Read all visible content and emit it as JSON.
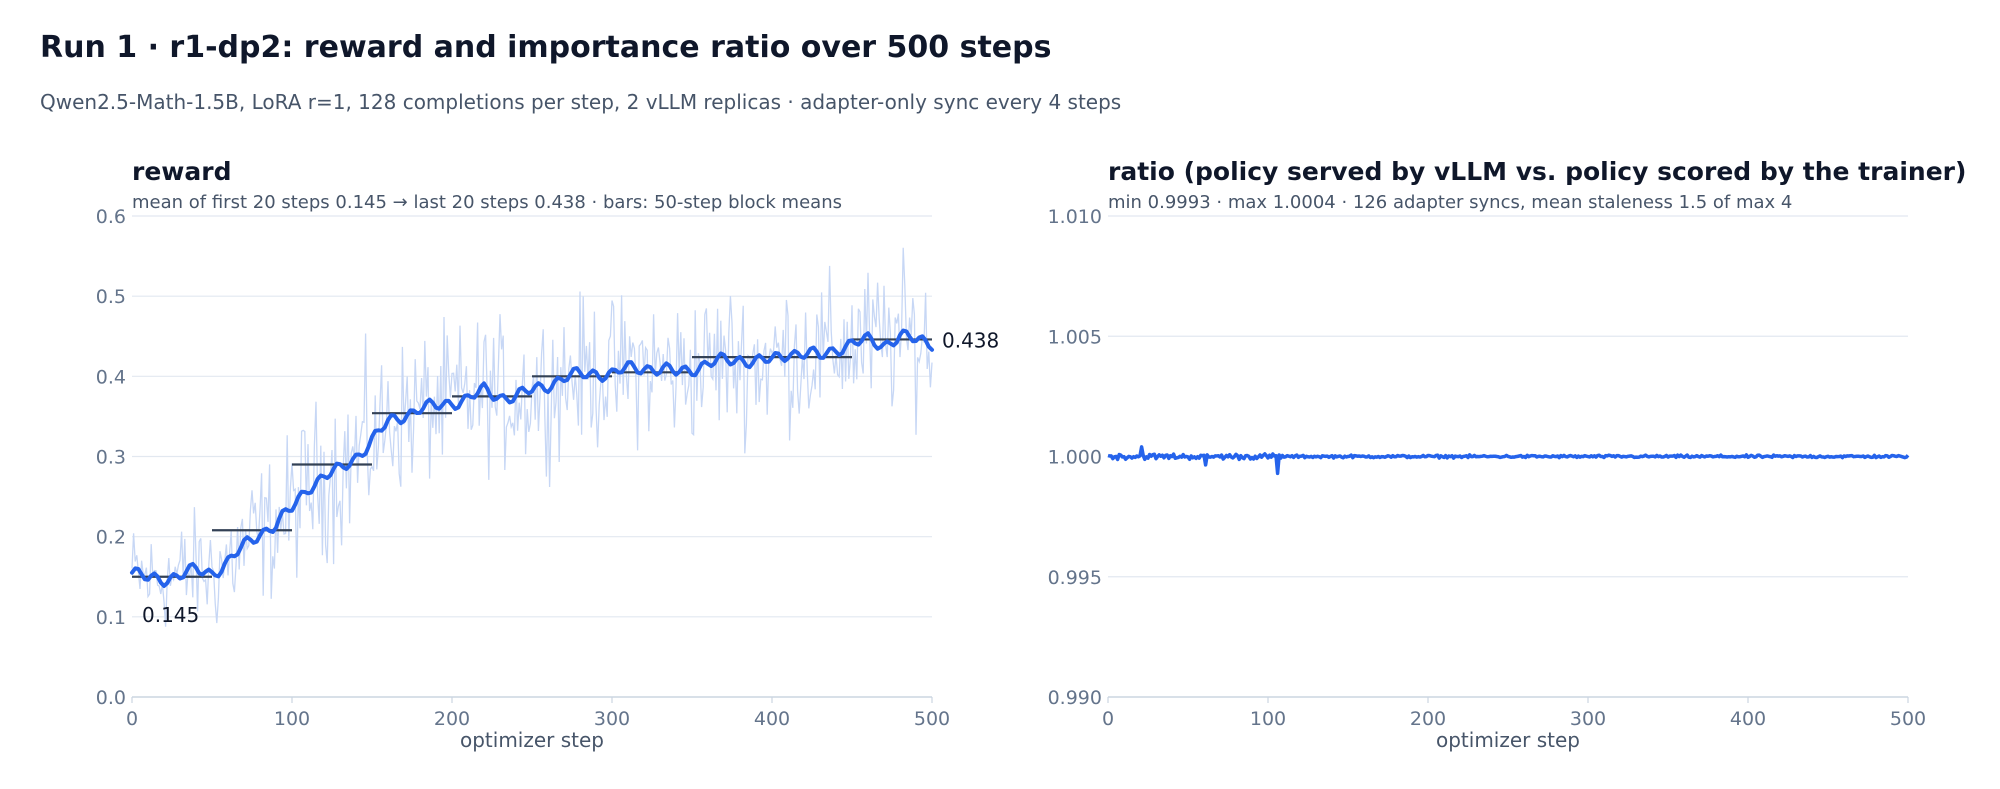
{
  "figure": {
    "title": "Run 1 · r1-dp2: reward and importance ratio over 500 steps",
    "subtitle": "Qwen2.5-Math-1.5B, LoRA r=1, 128 completions per step, 2 vLLM replicas · adapter-only sync every 4 steps"
  },
  "colors": {
    "line": "#2563eb",
    "raw": "#c7d7f5",
    "bar": "#334155",
    "grid": "#e2e8f0",
    "axis": "#cbd5e1"
  },
  "chart_data": [
    {
      "type": "line",
      "title": "reward",
      "subtitle": "mean of first 20 steps 0.145  →  last 20 steps 0.438   ·   bars: 50-step block means",
      "xlabel": "optimizer step",
      "ylabel": "",
      "xlim": [
        0,
        500
      ],
      "ylim": [
        0,
        0.6
      ],
      "xticks": [
        0,
        100,
        200,
        300,
        400,
        500
      ],
      "xtick_labels": [
        "0",
        "100",
        "200",
        "300",
        "400",
        "500"
      ],
      "yticks": [
        0,
        0.1,
        0.2,
        0.3,
        0.4,
        0.5,
        0.6
      ],
      "ytick_labels": [
        "0.0",
        "0.1",
        "0.2",
        "0.3",
        "0.4",
        "0.5",
        "0.6"
      ],
      "grid": true,
      "smoothed_trend": {
        "x": [
          0,
          10,
          20,
          30,
          40,
          50,
          60,
          70,
          80,
          90,
          100,
          110,
          120,
          130,
          140,
          150,
          160,
          170,
          180,
          190,
          200,
          210,
          220,
          230,
          240,
          250,
          260,
          270,
          280,
          290,
          300,
          310,
          320,
          330,
          340,
          350,
          360,
          370,
          380,
          390,
          400,
          410,
          420,
          430,
          440,
          450,
          460,
          470,
          480,
          490,
          500
        ],
        "y": [
          0.155,
          0.147,
          0.148,
          0.152,
          0.158,
          0.155,
          0.168,
          0.188,
          0.205,
          0.215,
          0.235,
          0.262,
          0.275,
          0.283,
          0.3,
          0.32,
          0.342,
          0.352,
          0.36,
          0.362,
          0.368,
          0.372,
          0.382,
          0.375,
          0.375,
          0.382,
          0.39,
          0.398,
          0.402,
          0.405,
          0.402,
          0.41,
          0.412,
          0.408,
          0.405,
          0.41,
          0.415,
          0.42,
          0.422,
          0.418,
          0.42,
          0.43,
          0.428,
          0.425,
          0.435,
          0.44,
          0.445,
          0.44,
          0.45,
          0.445,
          0.443
        ]
      },
      "block_means": [
        {
          "start": 0,
          "end": 50,
          "value": 0.15
        },
        {
          "start": 50,
          "end": 100,
          "value": 0.208
        },
        {
          "start": 100,
          "end": 150,
          "value": 0.29
        },
        {
          "start": 150,
          "end": 200,
          "value": 0.354
        },
        {
          "start": 200,
          "end": 250,
          "value": 0.375
        },
        {
          "start": 250,
          "end": 300,
          "value": 0.4
        },
        {
          "start": 300,
          "end": 350,
          "value": 0.405
        },
        {
          "start": 350,
          "end": 400,
          "value": 0.424
        },
        {
          "start": 400,
          "end": 450,
          "value": 0.424
        },
        {
          "start": 450,
          "end": 500,
          "value": 0.446
        }
      ],
      "annotations": [
        {
          "text": "0.145",
          "x": 0,
          "y": 0.145
        },
        {
          "text": "0.438",
          "x": 500,
          "y": 0.445
        }
      ]
    },
    {
      "type": "line",
      "title": "ratio  (policy served by vLLM vs. policy scored by the trainer)",
      "subtitle": "min 0.9993   ·   max 1.0004   ·   126 adapter syncs, mean staleness 1.5 of max 4",
      "xlabel": "optimizer step",
      "ylabel": "",
      "xlim": [
        0,
        500
      ],
      "ylim": [
        0.99,
        1.01
      ],
      "xticks": [
        0,
        100,
        200,
        300,
        400,
        500
      ],
      "xtick_labels": [
        "0",
        "100",
        "200",
        "300",
        "400",
        "500"
      ],
      "yticks": [
        0.99,
        0.995,
        1.0,
        1.005,
        1.01
      ],
      "ytick_labels": [
        "0.990",
        "0.995",
        "1.000",
        "1.005",
        "1.010"
      ],
      "grid": true,
      "range": {
        "min": 0.9993,
        "max": 1.0004
      }
    }
  ]
}
